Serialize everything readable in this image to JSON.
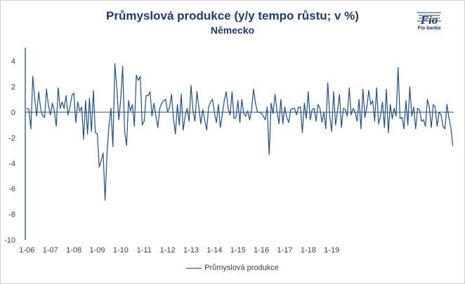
{
  "chart_data": {
    "type": "line",
    "title": "Průmyslová produkce (y/y tempo růstu; v %)",
    "subtitle": "Německo",
    "ylim": [
      -10,
      5
    ],
    "yticks": [
      4,
      2,
      0,
      -2,
      -4,
      -6,
      -8,
      -10
    ],
    "xtick_labels": [
      "1-06",
      "1-07",
      "1-08",
      "1-09",
      "1-10",
      "1-11",
      "1-12",
      "1-13",
      "1-14",
      "1-15",
      "1-16",
      "1-17",
      "1-18",
      "1-19"
    ],
    "xlabel": "",
    "ylabel": "",
    "legend_position": "bottom",
    "grid": false,
    "line_color": "#1f4e8c",
    "series": [
      {
        "name": "Průmyslová produkce",
        "start": "2006-01",
        "frequency": "monthly",
        "values": [
          0.3,
          0.2,
          -1.3,
          2.8,
          1.0,
          -0.3,
          1.6,
          0.3,
          -0.3,
          -0.4,
          1.8,
          0.5,
          -0.2,
          0.7,
          0.1,
          -1.1,
          1.9,
          0.3,
          0.8,
          0.3,
          1.3,
          -0.2,
          0.4,
          1.3,
          1.5,
          -0.8,
          0.8,
          0.1,
          0.4,
          -2.1,
          0.9,
          -1.7,
          1.1,
          -1.5,
          1.7,
          -1.6,
          -1.7,
          -4.3,
          -3.8,
          -3.2,
          -6.9,
          -3.2,
          -1.0,
          0.3,
          -2.7,
          3.8,
          1.9,
          -0.6,
          1.0,
          3.6,
          -1.5,
          -2.6,
          0.9,
          0.1,
          0.6,
          -1.1,
          2.9,
          2.5,
          2.8,
          -1.0,
          -0.7,
          1.3,
          1.3,
          1.6,
          -0.3,
          0.7,
          -0.3,
          -1.2,
          0.3,
          0.7,
          0.9,
          1.0,
          0.0,
          0.4,
          1.4,
          -0.5,
          -1.7,
          0.6,
          -1.0,
          1.4,
          -1.4,
          -0.3,
          0.3,
          -0.7,
          2.1,
          0.1,
          -0.7,
          1.6,
          0.4,
          -0.9,
          0.2,
          -0.6,
          -1.4,
          0.4,
          0.8,
          1.0,
          -0.1,
          -0.8,
          0.6,
          -1.2,
          -0.2,
          0.9,
          1.6,
          0.3,
          -0.2,
          1.6,
          -0.5,
          -0.4,
          0.9,
          -0.8,
          1.0,
          -0.1,
          -0.3,
          0.1,
          -0.6,
          0.2,
          1.8,
          0.7,
          0.0,
          0.0,
          -0.1,
          -0.3,
          -0.6,
          0.4,
          -3.3,
          0.7,
          -0.1,
          1.4,
          0.1,
          -0.9,
          1.0,
          -0.9,
          0.4,
          -0.4,
          -0.8,
          0.2,
          0.3,
          0.3,
          -0.2,
          0.4,
          0.4,
          -1.6,
          0.7,
          -0.5,
          1.6,
          -0.6,
          0.2,
          0.3,
          -0.7,
          0.6,
          0.3,
          -0.8,
          0.0,
          -1.3,
          2.3,
          -0.3,
          -1.5,
          1.6,
          -1.0,
          0.1,
          1.4,
          -1.2,
          0.3,
          0.2,
          -0.3,
          1.9,
          -0.2,
          0.3,
          0.0,
          -0.7,
          1.0,
          -1.3,
          1.8,
          -0.4,
          0.4,
          1.7,
          0.6,
          0.9,
          -0.7,
          1.9,
          -0.9,
          -0.3,
          0.8,
          -1.2,
          1.8,
          -1.6,
          0.6,
          -0.5,
          0.3,
          -0.3,
          3.5,
          -0.5,
          -0.4,
          -1.3,
          0.9,
          -1.0,
          2.0,
          -0.3,
          0.4,
          -1.3,
          0.3,
          0.2,
          -0.7,
          -0.6,
          -1.1,
          1.0,
          0.4,
          -1.2,
          0.6,
          0.4,
          -1.1,
          0.0,
          -0.2,
          -1.1,
          -1.3,
          0.6,
          -0.4,
          -1.2,
          -2.6
        ]
      }
    ]
  },
  "logo": {
    "mark_text": "Fio",
    "caption": "Fio banka"
  }
}
